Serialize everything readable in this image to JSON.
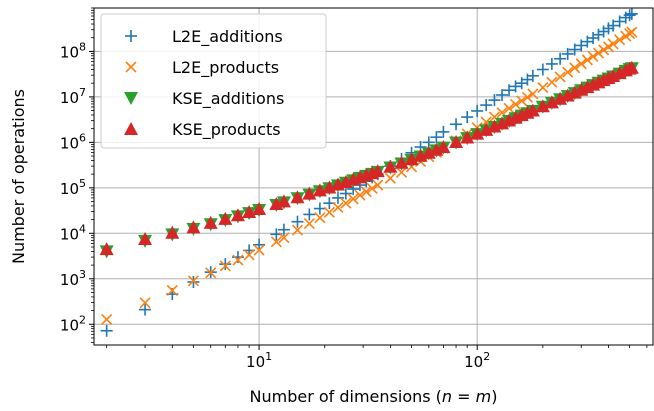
{
  "chart_data": {
    "type": "scatter",
    "xlabel": "Number of dimensions (n = m)",
    "xlabel_parts": {
      "prefix": "Number of dimensions (",
      "var1": "n",
      "eq": " = ",
      "var2": "m",
      "suffix": ")"
    },
    "ylabel": "Number of operations",
    "xscale": "log",
    "yscale": "log",
    "xlim": [
      1.75,
      640
    ],
    "ylim": [
      35,
      900000000
    ],
    "grid": true,
    "legend_position": "top-left",
    "x_ticks": [
      {
        "value": 10,
        "base": "10",
        "exp": "1"
      },
      {
        "value": 100,
        "base": "10",
        "exp": "2"
      }
    ],
    "y_ticks": [
      {
        "value": 100,
        "base": "10",
        "exp": "2"
      },
      {
        "value": 1000,
        "base": "10",
        "exp": "3"
      },
      {
        "value": 10000,
        "base": "10",
        "exp": "4"
      },
      {
        "value": 100000,
        "base": "10",
        "exp": "5"
      },
      {
        "value": 1000000,
        "base": "10",
        "exp": "6"
      },
      {
        "value": 10000000,
        "base": "10",
        "exp": "7"
      },
      {
        "value": 100000000,
        "base": "10",
        "exp": "8"
      }
    ],
    "x": [
      2,
      3,
      4,
      5,
      6,
      7,
      8,
      9,
      10,
      12,
      13,
      15,
      17,
      19,
      21,
      23,
      25,
      27,
      29,
      31,
      33,
      35,
      40,
      45,
      50,
      55,
      60,
      65,
      70,
      80,
      90,
      100,
      110,
      120,
      130,
      140,
      150,
      160,
      170,
      180,
      200,
      220,
      240,
      260,
      280,
      300,
      320,
      340,
      360,
      380,
      400,
      420,
      450,
      480,
      500,
      512
    ],
    "series": [
      {
        "name": "L2E_additions",
        "marker": "plus",
        "color": "#1f77b4",
        "values": [
          72,
          210,
          460,
          850,
          1400,
          2100,
          3000,
          4200,
          5600,
          9500,
          12000,
          18000,
          26000,
          35000,
          46000,
          60000,
          75000,
          94000,
          115000,
          140000,
          170000,
          200000,
          300000,
          430000,
          590000,
          790000,
          1000000,
          1300000,
          1700000,
          2500000,
          3600000,
          4900000,
          6600000,
          8500000,
          11000000,
          14000000,
          17000000,
          20000000,
          24000000,
          29000000,
          40000000,
          53000000,
          69000000,
          88000000,
          110000000,
          135000000,
          164000000,
          197000000,
          233000000,
          274000000,
          320000000,
          370000000,
          455000000,
          553000000,
          625000000,
          670000000
        ]
      },
      {
        "name": "L2E_products",
        "marker": "x",
        "color": "#ff7f0e",
        "values": [
          128,
          297,
          554,
          905,
          1356,
          1913,
          2580,
          3363,
          4270,
          6500,
          8000,
          11800,
          16400,
          22100,
          29000,
          37000,
          46000,
          57000,
          69000,
          82000,
          97000,
          115000,
          162000,
          220000,
          290000,
          380000,
          480000,
          600000,
          740000,
          1080000,
          1530000,
          2100000,
          2800000,
          3600000,
          4500000,
          5600000,
          6800000,
          8200000,
          9800000,
          11600000,
          16000000,
          21000000,
          27500000,
          35000000,
          43500000,
          53500000,
          65000000,
          77500000,
          92000000,
          108000000,
          126000000,
          146000000,
          180000000,
          218000000,
          247000000,
          265000000
        ]
      },
      {
        "name": "KSE_additions",
        "marker": "triangle-down",
        "color": "#2ca02c",
        "values": [
          4000,
          6800,
          9500,
          12500,
          15800,
          19500,
          23500,
          27800,
          32500,
          42000,
          48000,
          59000,
          71000,
          84000,
          98000,
          113000,
          129000,
          146000,
          164000,
          183000,
          203000,
          224000,
          280000,
          343000,
          413000,
          490000,
          574000,
          666000,
          765000,
          985000,
          1240000,
          1520000,
          1830000,
          2170000,
          2550000,
          2950000,
          3390000,
          3860000,
          4360000,
          4900000,
          6080000,
          7400000,
          8850000,
          10400000,
          12100000,
          14000000,
          16000000,
          18100000,
          20400000,
          22800000,
          25400000,
          28100000,
          32500000,
          37300000,
          40700000,
          42700000
        ]
      },
      {
        "name": "KSE_products",
        "marker": "triangle-up",
        "color": "#d62728",
        "values": [
          4500,
          7500,
          10300,
          13500,
          17000,
          20800,
          25000,
          29500,
          34300,
          44000,
          50500,
          62000,
          74500,
          88000,
          102000,
          118000,
          134000,
          152000,
          170000,
          190000,
          211000,
          233000,
          290000,
          355000,
          427000,
          506000,
          592000,
          686000,
          788000,
          1015000,
          1275000,
          1560000,
          1880000,
          2230000,
          2610000,
          3030000,
          3480000,
          3960000,
          4480000,
          5030000,
          6230000,
          7580000,
          9070000,
          10700000,
          12400000,
          14300000,
          16400000,
          18600000,
          20900000,
          23400000,
          26000000,
          28800000,
          33300000,
          38200000,
          41700000,
          43800000
        ]
      }
    ]
  }
}
